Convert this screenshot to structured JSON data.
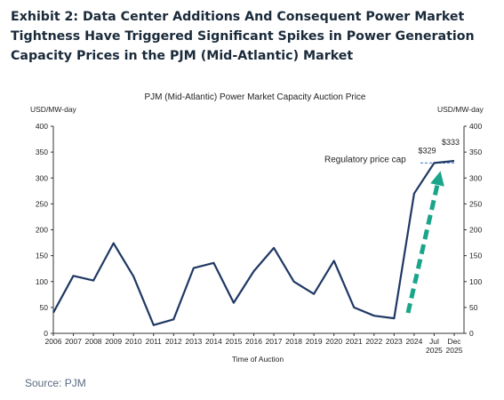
{
  "exhibit_title": "Exhibit 2: Data Center Additions And Consequent Power Market Tightness Have Triggered Significant Spikes in Power Generation Capacity Prices in the PJM (Mid-Atlantic) Market",
  "source": "Source: PJM",
  "colors": {
    "line": "#1f3864",
    "arrow": "#1aa58a",
    "cap_line": "#5b8fd6"
  },
  "chart_data": {
    "type": "line",
    "title": "PJM (Mid-Atlantic) Power Market Capacity Auction Price",
    "xlabel": "Time of Auction",
    "ylabel_left": "USD/MW-day",
    "ylabel_right": "USD/MW-day",
    "ylim": [
      0,
      400
    ],
    "yticks": [
      0,
      50,
      100,
      150,
      200,
      250,
      300,
      350,
      400
    ],
    "grid": false,
    "categories": [
      "2006",
      "2007",
      "2008",
      "2009",
      "2010",
      "2011",
      "2012",
      "2013",
      "2014",
      "2015",
      "2016",
      "2017",
      "2018",
      "2019",
      "2020",
      "2021",
      "2022",
      "2023",
      "2024",
      "Jul 2025",
      "Dec 2025"
    ],
    "series": [
      {
        "values": [
          40,
          111,
          102,
          174,
          110,
          16,
          27,
          126,
          136,
          59,
          120,
          165,
          100,
          76,
          140,
          50,
          34,
          29,
          270,
          329,
          333
        ]
      }
    ],
    "annotations": {
      "label_jul_2025": "$329",
      "label_dec_2025": "$333",
      "cap_label": "Regulatory price cap",
      "cap_value": 329
    }
  }
}
